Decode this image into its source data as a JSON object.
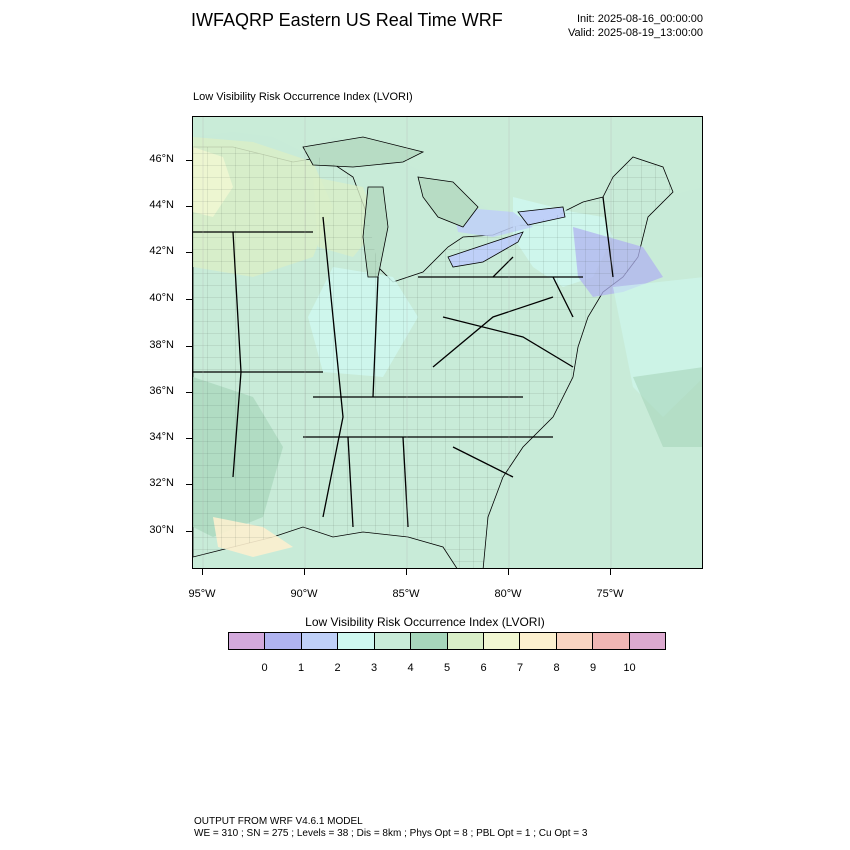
{
  "header": {
    "title": "IWFAQRP Eastern US Real Time WRF",
    "init": "Init: 2025-08-16_00:00:00",
    "valid": "Valid: 2025-08-19_13:00:00"
  },
  "map": {
    "subtitle": "Low Visibility Risk Occurrence Index   (LVORI)",
    "lat_labels": [
      "46°N",
      "44°N",
      "42°N",
      "40°N",
      "38°N",
      "36°N",
      "34°N",
      "32°N",
      "30°N"
    ],
    "lon_labels": [
      "95°W",
      "90°W",
      "85°W",
      "80°W",
      "75°W"
    ],
    "colors": {
      "land_base": "#c8ebd8",
      "ocean": "#c8ebd8",
      "lake": "#b7dcc4",
      "level_3": "#cff8f0",
      "level_5": "#a6d6bb",
      "level_6": "#d9efc8",
      "level_2": "#bfd0f8",
      "level_1": "#b0b3f0",
      "level_7": "#f1f7d2",
      "level_8": "#fcf0cf",
      "state_line": "#000000",
      "county_line": "#2d3d33"
    }
  },
  "colorbar": {
    "title": "Low Visibility Risk Occurrence Index  (LVORI)",
    "colors": [
      "#d3a9dc",
      "#b0b3f0",
      "#bfd0f8",
      "#cff8f0",
      "#c8ebd8",
      "#a6d6bb",
      "#d9efc8",
      "#f1f7d2",
      "#fcf0cf",
      "#f9d4c1",
      "#f0b6b4",
      "#dcaad0"
    ],
    "labels": [
      "0",
      "1",
      "2",
      "3",
      "4",
      "5",
      "6",
      "7",
      "8",
      "9",
      "10"
    ]
  },
  "footer": {
    "line1": "OUTPUT FROM WRF V4.6.1 MODEL",
    "line2": "WE = 310 ; SN = 275 ; Levels = 38 ; Dis = 8km ; Phys Opt = 8 ; PBL Opt = 1 ; Cu Opt = 3"
  }
}
